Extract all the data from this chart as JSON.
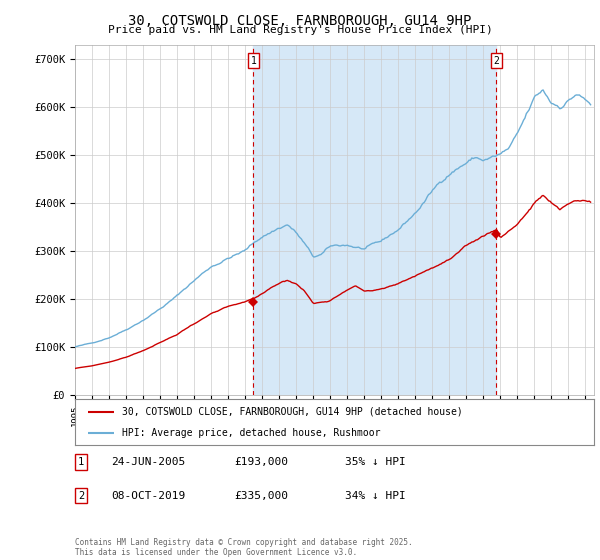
{
  "title": "30, COTSWOLD CLOSE, FARNBOROUGH, GU14 9HP",
  "subtitle": "Price paid vs. HM Land Registry's House Price Index (HPI)",
  "yticks": [
    0,
    100000,
    200000,
    300000,
    400000,
    500000,
    600000,
    700000
  ],
  "ytick_labels": [
    "£0",
    "£100K",
    "£200K",
    "£300K",
    "£400K",
    "£500K",
    "£600K",
    "£700K"
  ],
  "xlim_start": 1995.0,
  "xlim_end": 2025.5,
  "ylim": [
    0,
    730000
  ],
  "hpi_color": "#6baed6",
  "hpi_fill_color": "#d6e8f7",
  "price_color": "#cc0000",
  "marker1_date": 2005.48,
  "marker2_date": 2019.77,
  "marker1_price": 193000,
  "marker2_price": 335000,
  "legend_label1": "30, COTSWOLD CLOSE, FARNBOROUGH, GU14 9HP (detached house)",
  "legend_label2": "HPI: Average price, detached house, Rushmoor",
  "background_color": "#ffffff",
  "grid_color": "#cccccc",
  "footer": "Contains HM Land Registry data © Crown copyright and database right 2025.\nThis data is licensed under the Open Government Licence v3.0."
}
